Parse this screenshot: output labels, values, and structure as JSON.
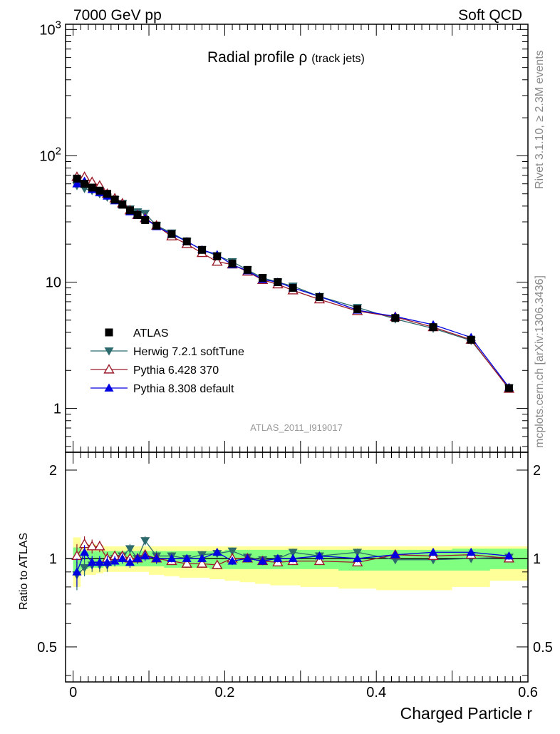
{
  "header": {
    "left": "7000 GeV pp",
    "right": "Soft QCD"
  },
  "side_text": {
    "top": "Rivet 3.1.10, ≥ 2.3M events",
    "bottom": "mcplots.cern.ch [arXiv:1306.3436]"
  },
  "chart_data": [
    {
      "type": "line",
      "title": "Radial profile ρ",
      "title_suffix": "(track jets)",
      "watermark": "ATLAS_2011_I919017",
      "yscale": "log",
      "xlim": [
        -0.01,
        0.6
      ],
      "ylim": [
        0.45,
        1100
      ],
      "ytick_labels": {
        "1": "1",
        "10": "10",
        "100": "10²",
        "1000": "10³"
      },
      "x": [
        0.005,
        0.015,
        0.025,
        0.035,
        0.045,
        0.055,
        0.065,
        0.075,
        0.085,
        0.095,
        0.11,
        0.13,
        0.15,
        0.17,
        0.19,
        0.21,
        0.23,
        0.25,
        0.27,
        0.29,
        0.325,
        0.375,
        0.425,
        0.475,
        0.525,
        0.575
      ],
      "legend": [
        {
          "name": "ATLAS",
          "marker": "square",
          "color": "#000000"
        },
        {
          "name": "Herwig 7.2.1 softTune",
          "marker": "triangle-down",
          "color": "#2c6a6e"
        },
        {
          "name": "Pythia 6.428 370",
          "marker": "triangle-open",
          "color": "#9b1b2a"
        },
        {
          "name": "Pythia 8.308 default",
          "marker": "triangle-up",
          "color": "#0000e0"
        }
      ],
      "series": [
        {
          "name": "ATLAS",
          "values": [
            66,
            60,
            56,
            53,
            50,
            45,
            41,
            37,
            34,
            31,
            28,
            24,
            21,
            18,
            16,
            14,
            12.5,
            10.8,
            10,
            9,
            7.6,
            6.1,
            5.2,
            4.4,
            3.5,
            1.45
          ],
          "err": [
            4,
            3.5,
            3,
            3,
            2.5,
            2,
            2,
            2,
            1.5,
            1.5,
            1.2,
            1,
            1,
            0.8,
            0.7,
            0.6,
            0.5,
            0.5,
            0.4,
            0.4,
            0.3,
            0.3,
            0.2,
            0.2,
            0.15,
            0.08
          ]
        },
        {
          "name": "Herwig 7.2.1 softTune",
          "values": [
            58,
            55,
            53,
            50,
            47,
            45,
            42,
            38,
            36,
            35,
            28,
            24.5,
            21,
            18,
            16.2,
            14.5,
            12.5,
            10.8,
            10,
            9.3,
            7.7,
            6.3,
            5.1,
            4.3,
            3.45,
            1.45
          ]
        },
        {
          "name": "Pythia 6.428 370",
          "values": [
            68,
            68,
            62,
            58,
            50,
            46,
            42,
            37,
            34,
            32,
            28,
            23,
            20,
            17,
            14.5,
            13.8,
            12.1,
            10.4,
            9.6,
            8.6,
            7.3,
            5.9,
            5.3,
            4.4,
            3.5,
            1.43
          ]
        },
        {
          "name": "Pythia 8.308 default",
          "values": [
            60,
            63,
            54,
            51,
            48,
            44,
            41,
            36,
            34,
            32,
            27.5,
            24,
            21,
            18,
            16.5,
            13.7,
            12.3,
            10.5,
            10,
            9,
            7.7,
            6.0,
            5.35,
            4.6,
            3.65,
            1.47
          ]
        }
      ]
    },
    {
      "type": "line",
      "ylabel": "Ratio to ATLAS",
      "xlabel": "Charged Particle r",
      "xlim": [
        -0.01,
        0.6
      ],
      "ylim": [
        0.38,
        2.3
      ],
      "yscale": "log",
      "xticks": [
        0,
        0.2,
        0.4,
        0.6
      ],
      "xtick_labels": [
        "0",
        "0.2",
        "0.4",
        "0.6"
      ],
      "yticks": [
        0.5,
        1,
        2
      ],
      "ytick_labels": [
        "0.5",
        "1",
        "2"
      ],
      "x": [
        0.005,
        0.015,
        0.025,
        0.035,
        0.045,
        0.055,
        0.065,
        0.075,
        0.085,
        0.095,
        0.11,
        0.13,
        0.15,
        0.17,
        0.19,
        0.21,
        0.23,
        0.25,
        0.27,
        0.29,
        0.325,
        0.375,
        0.425,
        0.475,
        0.525,
        0.575
      ],
      "bin_edges": [
        0,
        0.01,
        0.02,
        0.03,
        0.04,
        0.05,
        0.06,
        0.07,
        0.08,
        0.09,
        0.1,
        0.12,
        0.14,
        0.16,
        0.18,
        0.2,
        0.22,
        0.24,
        0.26,
        0.28,
        0.3,
        0.35,
        0.4,
        0.45,
        0.5,
        0.55,
        0.6
      ],
      "band_yellow": {
        "low": [
          0.8,
          0.88,
          0.88,
          0.89,
          0.9,
          0.9,
          0.9,
          0.9,
          0.9,
          0.9,
          0.88,
          0.87,
          0.86,
          0.86,
          0.85,
          0.84,
          0.83,
          0.82,
          0.81,
          0.81,
          0.8,
          0.79,
          0.78,
          0.78,
          0.8,
          0.84
        ],
        "high": [
          1.18,
          1.12,
          1.12,
          1.11,
          1.1,
          1.1,
          1.1,
          1.1,
          1.1,
          1.1,
          1.1,
          1.1,
          1.1,
          1.1,
          1.1,
          1.1,
          1.1,
          1.1,
          1.1,
          1.1,
          1.1,
          1.1,
          1.1,
          1.1,
          1.1,
          1.1
        ]
      },
      "band_green": {
        "low": [
          0.88,
          0.92,
          0.93,
          0.93,
          0.94,
          0.94,
          0.94,
          0.94,
          0.94,
          0.94,
          0.94,
          0.93,
          0.93,
          0.93,
          0.92,
          0.92,
          0.92,
          0.92,
          0.92,
          0.92,
          0.92,
          0.91,
          0.91,
          0.91,
          0.91,
          0.92
        ],
        "high": [
          1.09,
          1.06,
          1.06,
          1.06,
          1.06,
          1.06,
          1.06,
          1.06,
          1.06,
          1.06,
          1.06,
          1.06,
          1.06,
          1.06,
          1.06,
          1.07,
          1.07,
          1.07,
          1.07,
          1.07,
          1.07,
          1.07,
          1.07,
          1.07,
          1.08,
          1.08
        ]
      },
      "series": [
        {
          "name": "Herwig 7.2.1 softTune",
          "values": [
            0.88,
            0.93,
            0.95,
            0.95,
            0.95,
            1.0,
            1.02,
            1.08,
            1.0,
            1.15,
            1.02,
            1.02,
            1.0,
            1.03,
            1.04,
            1.06,
            1.01,
            0.99,
            1.0,
            1.05,
            1.02,
            1.05,
            0.99,
            0.99,
            1.0,
            1.01
          ],
          "err": [
            0.1,
            0.06,
            0.05,
            0.05,
            0.05,
            0.04,
            0.04,
            0.04,
            0.04,
            0.04,
            0.04,
            0.03,
            0.03,
            0.03,
            0.03,
            0.03,
            0.03,
            0.03,
            0.03,
            0.03,
            0.03,
            0.03,
            0.03,
            0.03,
            0.03,
            0.03
          ]
        },
        {
          "name": "Pythia 6.428 370",
          "values": [
            1.02,
            1.12,
            1.1,
            1.1,
            1.0,
            1.02,
            1.02,
            1.0,
            1.0,
            1.03,
            1.0,
            0.98,
            0.96,
            0.96,
            0.95,
            1.0,
            1.0,
            0.98,
            0.97,
            0.98,
            0.98,
            0.97,
            1.03,
            1.02,
            1.03,
            1.0
          ],
          "err": [
            0.1,
            0.07,
            0.06,
            0.05,
            0.05,
            0.04,
            0.04,
            0.04,
            0.04,
            0.04,
            0.04,
            0.03,
            0.03,
            0.03,
            0.03,
            0.03,
            0.03,
            0.03,
            0.03,
            0.03,
            0.03,
            0.03,
            0.03,
            0.03,
            0.03,
            0.03
          ]
        },
        {
          "name": "Pythia 8.308 default",
          "values": [
            0.9,
            1.05,
            0.97,
            0.97,
            0.97,
            0.98,
            1.0,
            0.97,
            1.0,
            1.02,
            1.0,
            1.0,
            1.0,
            1.0,
            1.05,
            0.98,
            1.0,
            0.98,
            1.0,
            1.0,
            1.02,
            1.0,
            1.03,
            1.05,
            1.05,
            1.02
          ],
          "err": [
            0.1,
            0.06,
            0.05,
            0.05,
            0.05,
            0.04,
            0.04,
            0.04,
            0.04,
            0.04,
            0.04,
            0.03,
            0.03,
            0.03,
            0.03,
            0.03,
            0.03,
            0.03,
            0.03,
            0.03,
            0.03,
            0.03,
            0.03,
            0.03,
            0.03,
            0.03
          ]
        }
      ]
    }
  ]
}
